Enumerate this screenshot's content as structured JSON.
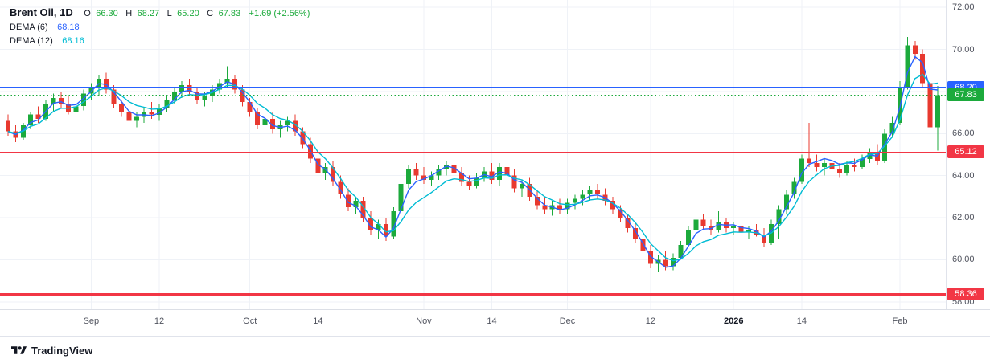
{
  "legend": {
    "symbol": "Brent Oil, 1D",
    "o_label": "O",
    "o_value": "66.30",
    "h_label": "H",
    "h_value": "68.27",
    "l_label": "L",
    "l_value": "65.20",
    "c_label": "C",
    "c_value": "67.83",
    "change": "+1.69 (+2.56%)",
    "dema6_name": "DEMA (6)",
    "dema6_value": "68.18",
    "dema12_name": "DEMA (12)",
    "dema12_value": "68.16"
  },
  "footer": {
    "brand": "TradingView"
  },
  "colors": {
    "up": "#1caa3c",
    "down": "#e8392f",
    "blue": "#2962FF",
    "cyan": "#00BCD4",
    "grid": "#eff2f7",
    "axis_text": "#50535e",
    "red_level": "#F23645",
    "border": "#e0e3eb"
  },
  "chart_data": {
    "type": "candlestick",
    "title": "Brent Oil, 1D",
    "symbol": "Brent Oil",
    "timeframe": "1D",
    "last_bar": {
      "open": 66.3,
      "high": 68.27,
      "low": 65.2,
      "close": 67.83,
      "change": 1.69,
      "change_pct": 2.56
    },
    "price_axis": {
      "min": 57.65,
      "max": 72.35,
      "ticks": [
        "72.00",
        "70.00",
        "68.00",
        "66.00",
        "64.00",
        "62.00",
        "60.00",
        "58.00"
      ],
      "tick_values": [
        72,
        70,
        68,
        66,
        64,
        62,
        60,
        58
      ]
    },
    "time_axis": {
      "labels": [
        {
          "index": 11,
          "label": "Sep"
        },
        {
          "index": 20,
          "label": "12"
        },
        {
          "index": 32,
          "label": "Oct"
        },
        {
          "index": 41,
          "label": "14"
        },
        {
          "index": 55,
          "label": "Nov"
        },
        {
          "index": 64,
          "label": "14"
        },
        {
          "index": 74,
          "label": "Dec"
        },
        {
          "index": 85,
          "label": "12"
        },
        {
          "index": 96,
          "label": "2026",
          "strong": true
        },
        {
          "index": 105,
          "label": "14"
        },
        {
          "index": 118,
          "label": "Feb"
        }
      ]
    },
    "levels": [
      {
        "price": 68.2,
        "label": "68.20",
        "color": "#2962FF",
        "style": "solid",
        "width": 1
      },
      {
        "price": 67.83,
        "label": "67.83",
        "color": "#1caa3c",
        "style": "dotted",
        "width": 1
      },
      {
        "price": 65.12,
        "label": "65.12",
        "color": "#F23645",
        "style": "solid",
        "width": 1
      },
      {
        "price": 58.36,
        "label": "58.36",
        "color": "#F23645",
        "style": "solid",
        "width": 3
      }
    ],
    "indicators": [
      {
        "name": "DEMA (6)",
        "period": 6,
        "value": 68.18,
        "color": "#2962FF"
      },
      {
        "name": "DEMA (12)",
        "period": 12,
        "value": 68.16,
        "color": "#00BCD4"
      }
    ],
    "candles": [
      [
        66.6,
        66.9,
        65.9,
        66.1
      ],
      [
        66.1,
        66.4,
        65.6,
        65.8
      ],
      [
        65.8,
        66.5,
        65.7,
        66.4
      ],
      [
        66.4,
        67.0,
        66.2,
        66.9
      ],
      [
        66.9,
        67.3,
        66.5,
        66.7
      ],
      [
        66.7,
        67.6,
        66.6,
        67.4
      ],
      [
        67.4,
        67.9,
        67.0,
        67.7
      ],
      [
        67.7,
        68.0,
        67.2,
        67.4
      ],
      [
        67.4,
        67.8,
        66.9,
        67.0
      ],
      [
        67.0,
        67.5,
        66.8,
        67.3
      ],
      [
        67.3,
        68.1,
        67.1,
        67.9
      ],
      [
        67.9,
        68.4,
        67.6,
        68.2
      ],
      [
        68.2,
        68.8,
        67.8,
        68.6
      ],
      [
        68.6,
        68.9,
        67.9,
        68.1
      ],
      [
        68.1,
        68.3,
        67.2,
        67.4
      ],
      [
        67.4,
        67.6,
        66.8,
        67.0
      ],
      [
        67.0,
        67.3,
        66.4,
        66.6
      ],
      [
        66.6,
        67.0,
        66.3,
        66.8
      ],
      [
        66.8,
        67.2,
        66.5,
        67.0
      ],
      [
        67.0,
        67.5,
        66.7,
        66.9
      ],
      [
        66.9,
        67.4,
        66.6,
        67.2
      ],
      [
        67.2,
        67.8,
        67.0,
        67.6
      ],
      [
        67.6,
        68.2,
        67.4,
        68.0
      ],
      [
        68.0,
        68.5,
        67.7,
        68.3
      ],
      [
        68.3,
        68.6,
        67.8,
        68.0
      ],
      [
        68.0,
        68.2,
        67.4,
        67.6
      ],
      [
        67.6,
        68.0,
        67.3,
        67.8
      ],
      [
        67.8,
        68.3,
        67.5,
        68.1
      ],
      [
        68.1,
        68.6,
        67.9,
        68.4
      ],
      [
        68.4,
        69.2,
        68.2,
        68.6
      ],
      [
        68.6,
        68.8,
        67.9,
        68.1
      ],
      [
        68.1,
        68.3,
        67.3,
        67.5
      ],
      [
        67.5,
        67.7,
        66.8,
        67.0
      ],
      [
        67.0,
        67.2,
        66.2,
        66.4
      ],
      [
        66.4,
        66.9,
        66.1,
        66.7
      ],
      [
        66.7,
        67.0,
        66.0,
        66.2
      ],
      [
        66.2,
        66.6,
        65.8,
        66.4
      ],
      [
        66.4,
        66.8,
        66.1,
        66.6
      ],
      [
        66.6,
        66.9,
        65.9,
        66.1
      ],
      [
        66.1,
        66.3,
        65.3,
        65.5
      ],
      [
        65.5,
        65.8,
        64.6,
        64.8
      ],
      [
        64.8,
        65.1,
        63.9,
        64.1
      ],
      [
        64.1,
        64.6,
        63.8,
        64.4
      ],
      [
        64.4,
        64.7,
        63.5,
        63.7
      ],
      [
        63.7,
        64.0,
        62.9,
        63.1
      ],
      [
        63.1,
        63.4,
        62.3,
        62.5
      ],
      [
        62.5,
        63.0,
        62.2,
        62.8
      ],
      [
        62.8,
        63.0,
        61.8,
        62.0
      ],
      [
        62.0,
        62.3,
        61.2,
        61.4
      ],
      [
        61.4,
        61.9,
        61.0,
        61.7
      ],
      [
        61.7,
        62.0,
        60.9,
        61.1
      ],
      [
        61.1,
        62.5,
        61.0,
        62.3
      ],
      [
        62.3,
        63.8,
        62.2,
        63.6
      ],
      [
        63.6,
        64.5,
        63.4,
        64.3
      ],
      [
        64.3,
        64.6,
        63.8,
        64.0
      ],
      [
        64.0,
        64.4,
        63.6,
        63.8
      ],
      [
        63.8,
        64.2,
        63.5,
        64.0
      ],
      [
        64.0,
        64.5,
        63.8,
        64.3
      ],
      [
        64.3,
        64.7,
        64.0,
        64.5
      ],
      [
        64.5,
        64.8,
        63.9,
        64.1
      ],
      [
        64.1,
        64.4,
        63.5,
        63.7
      ],
      [
        63.7,
        64.0,
        63.3,
        63.5
      ],
      [
        63.5,
        64.1,
        63.4,
        63.9
      ],
      [
        63.9,
        64.4,
        63.7,
        64.2
      ],
      [
        64.2,
        64.6,
        63.6,
        63.8
      ],
      [
        63.8,
        64.6,
        63.5,
        64.4
      ],
      [
        64.4,
        64.7,
        63.8,
        64.0
      ],
      [
        64.0,
        64.3,
        63.2,
        63.4
      ],
      [
        63.4,
        63.8,
        63.0,
        63.6
      ],
      [
        63.6,
        63.9,
        62.8,
        63.0
      ],
      [
        63.0,
        63.3,
        62.4,
        62.6
      ],
      [
        62.6,
        63.0,
        62.2,
        62.4
      ],
      [
        62.4,
        62.8,
        62.1,
        62.6
      ],
      [
        62.6,
        62.9,
        62.2,
        62.4
      ],
      [
        62.4,
        62.9,
        62.2,
        62.7
      ],
      [
        62.7,
        63.1,
        62.4,
        62.9
      ],
      [
        62.9,
        63.3,
        62.6,
        63.1
      ],
      [
        63.1,
        63.5,
        62.8,
        63.3
      ],
      [
        63.3,
        63.6,
        62.9,
        63.1
      ],
      [
        63.1,
        63.4,
        62.6,
        62.8
      ],
      [
        62.8,
        63.0,
        62.2,
        62.4
      ],
      [
        62.4,
        62.6,
        61.8,
        62.0
      ],
      [
        62.0,
        62.2,
        61.3,
        61.5
      ],
      [
        61.5,
        61.8,
        60.8,
        61.0
      ],
      [
        61.0,
        61.2,
        60.2,
        60.4
      ],
      [
        60.4,
        60.7,
        59.6,
        59.8
      ],
      [
        59.8,
        60.2,
        59.4,
        60.0
      ],
      [
        60.0,
        60.4,
        59.5,
        59.7
      ],
      [
        59.7,
        60.3,
        59.5,
        60.1
      ],
      [
        60.1,
        60.9,
        60.0,
        60.7
      ],
      [
        60.7,
        61.6,
        60.6,
        61.4
      ],
      [
        61.4,
        62.1,
        61.2,
        61.9
      ],
      [
        61.9,
        62.2,
        61.4,
        61.6
      ],
      [
        61.6,
        61.9,
        61.2,
        61.4
      ],
      [
        61.4,
        62.3,
        61.3,
        61.8
      ],
      [
        61.8,
        62.0,
        61.3,
        61.5
      ],
      [
        61.5,
        61.8,
        61.2,
        61.6
      ],
      [
        61.6,
        61.8,
        61.1,
        61.3
      ],
      [
        61.3,
        61.6,
        61.0,
        61.4
      ],
      [
        61.4,
        61.7,
        61.1,
        61.2
      ],
      [
        61.2,
        61.5,
        60.6,
        60.8
      ],
      [
        60.8,
        61.9,
        60.7,
        61.7
      ],
      [
        61.7,
        62.6,
        61.0,
        62.4
      ],
      [
        62.4,
        63.3,
        62.2,
        63.1
      ],
      [
        63.1,
        63.9,
        62.9,
        63.7
      ],
      [
        63.7,
        65.0,
        63.6,
        64.8
      ],
      [
        64.8,
        66.5,
        64.4,
        64.6
      ],
      [
        64.6,
        65.0,
        64.2,
        64.4
      ],
      [
        64.4,
        64.8,
        64.0,
        64.6
      ],
      [
        64.6,
        64.9,
        64.1,
        64.3
      ],
      [
        64.3,
        64.6,
        63.9,
        64.1
      ],
      [
        64.1,
        64.7,
        64.0,
        64.5
      ],
      [
        64.5,
        64.8,
        64.2,
        64.4
      ],
      [
        64.4,
        65.0,
        64.3,
        64.8
      ],
      [
        64.8,
        65.3,
        64.6,
        65.1
      ],
      [
        65.1,
        65.5,
        64.5,
        64.7
      ],
      [
        64.7,
        66.2,
        64.6,
        66.0
      ],
      [
        66.0,
        66.8,
        65.8,
        66.5
      ],
      [
        66.5,
        68.5,
        66.4,
        68.2
      ],
      [
        68.2,
        70.6,
        68.1,
        70.2
      ],
      [
        70.2,
        70.4,
        69.5,
        69.8
      ],
      [
        69.8,
        70.0,
        68.2,
        68.4
      ],
      [
        68.4,
        68.6,
        66.0,
        66.3
      ],
      [
        66.3,
        68.27,
        65.2,
        67.83
      ]
    ]
  }
}
